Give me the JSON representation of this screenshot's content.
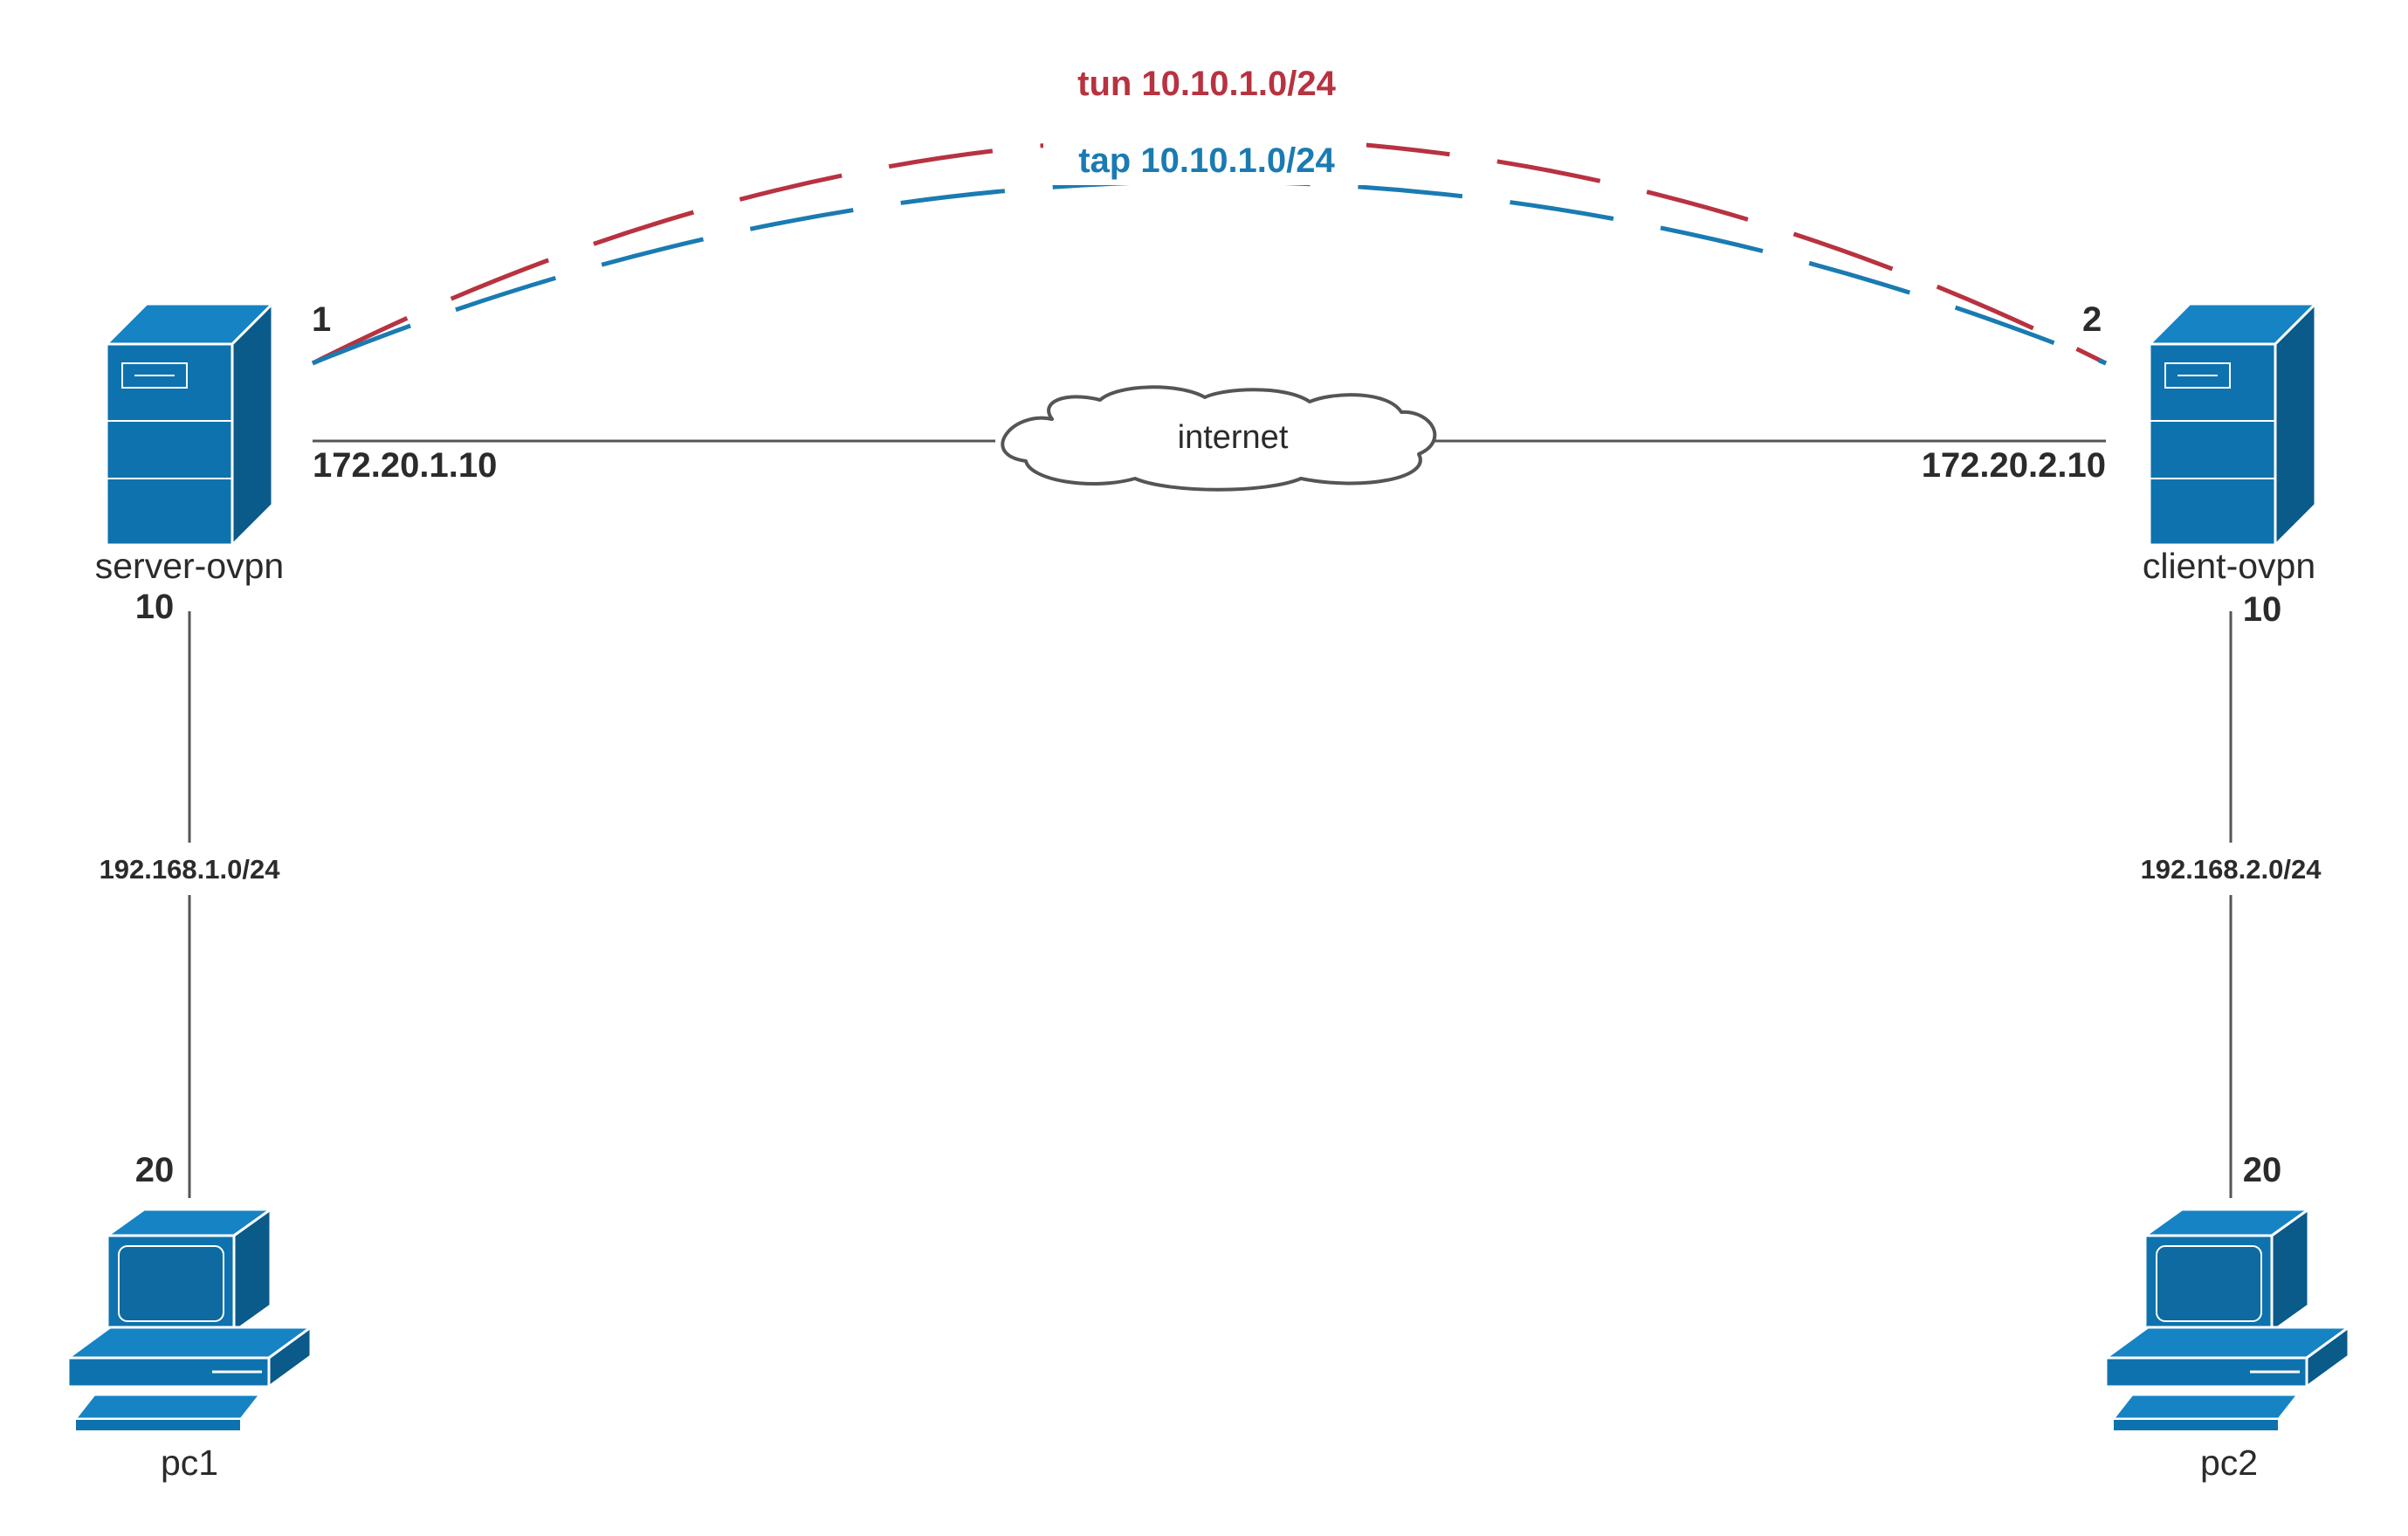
{
  "nodes": {
    "server": {
      "name": "server-ovpn",
      "tunnel_port": "1",
      "wan_ip": "172.20.1.10",
      "lan_port": "10"
    },
    "client": {
      "name": "client-ovpn",
      "tunnel_port": "2",
      "wan_ip": "172.20.2.10",
      "lan_port": "10"
    },
    "pc1": {
      "name": "pc1",
      "port": "20"
    },
    "pc2": {
      "name": "pc2",
      "port": "20"
    }
  },
  "cloud": {
    "label": "internet"
  },
  "tunnels": {
    "tun": {
      "label": "tun 10.10.1.0/24",
      "color": "#b83240"
    },
    "tap": {
      "label": "tap 10.10.1.0/24",
      "color": "#1a7bb2"
    }
  },
  "networks": {
    "left_lan": "192.168.1.0/24",
    "right_lan": "192.168.2.0/24"
  },
  "colors": {
    "device_fill": "#0e72ae",
    "device_dark": "#0a5a8a",
    "line": "#555555",
    "text": "#2b2b2b"
  }
}
